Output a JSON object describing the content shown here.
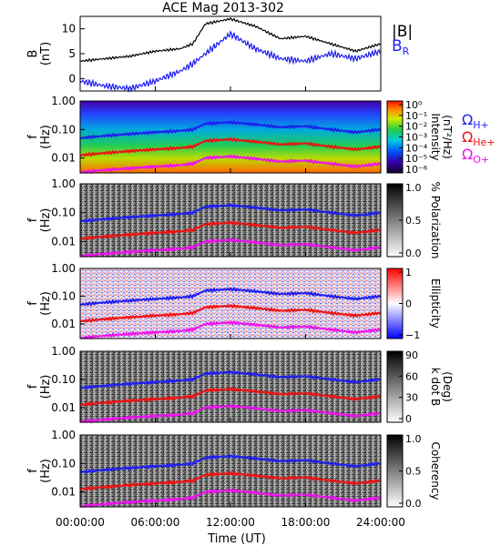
{
  "title": "ACE Mag 2013-302",
  "xaxis": {
    "label": "Time (UT)",
    "ticks": [
      "00:00:00",
      "06:00:00",
      "12:00:00",
      "18:00:00",
      "24:00:00"
    ],
    "range_hours": [
      0,
      24
    ]
  },
  "legend_top": {
    "b_total": "|B|",
    "b_r": "B",
    "b_r_sub": "R"
  },
  "legend_gyro": [
    {
      "sym": "Ω",
      "sub": "H+",
      "color": "#1e1ef0"
    },
    {
      "sym": "Ω",
      "sub": "He+",
      "color": "#ee1111"
    },
    {
      "sym": "Ω",
      "sub": "O+",
      "color": "#ee11ee"
    }
  ],
  "colors": {
    "btotal": "#000000",
    "br": "#1e1ef0",
    "h": "#1e1ef0",
    "he": "#ee1111",
    "o": "#ee11ee"
  },
  "panels": [
    {
      "id": "b",
      "ylabel": "B",
      "yunit": "(nT)",
      "yticks": [
        "0",
        "5",
        "10"
      ]
    },
    {
      "id": "intensity",
      "ylabel": "f",
      "yunit": "(Hz)",
      "yticks": [
        "1.00",
        "0.10",
        "0.01"
      ],
      "cb_label": "Intensity",
      "cb_unit": "(nT²/Hz)",
      "cb_ticks": [
        "10⁰",
        "10⁻¹",
        "10⁻²",
        "10⁻³",
        "10⁻⁴",
        "10⁻⁵",
        "10⁻⁶"
      ],
      "colormap": "rainbow"
    },
    {
      "id": "polarization",
      "ylabel": "f",
      "yunit": "(Hz)",
      "yticks": [
        "1.00",
        "0.10",
        "0.01"
      ],
      "cb_label": "% Polarization",
      "cb_unit": "",
      "cb_ticks": [
        "1.0",
        "0.5",
        "0.0"
      ],
      "colormap": "gray"
    },
    {
      "id": "ellipticity",
      "ylabel": "f",
      "yunit": "(Hz)",
      "yticks": [
        "1.00",
        "0.10",
        "0.01"
      ],
      "cb_label": "Ellipticity",
      "cb_unit": "",
      "cb_ticks": [
        "1",
        "0",
        "−1"
      ],
      "colormap": "bwr"
    },
    {
      "id": "kdotb",
      "ylabel": "f",
      "yunit": "(Hz)",
      "yticks": [
        "1.00",
        "0.10",
        "0.01"
      ],
      "cb_label": "k dot B",
      "cb_unit": "(Deg)",
      "cb_ticks": [
        "90",
        "60",
        "30",
        "0"
      ],
      "colormap": "gray"
    },
    {
      "id": "coherency",
      "ylabel": "f",
      "yunit": "(Hz)",
      "yticks": [
        "1.00",
        "0.10",
        "0.01"
      ],
      "cb_label": "Coherency",
      "cb_unit": "",
      "cb_ticks": [
        "1.0",
        "0.5",
        "0.0"
      ],
      "colormap": "gray"
    }
  ],
  "chart_data": {
    "type": "line",
    "title": "ACE Mag 2013-302",
    "xlabel": "Time (UT)",
    "x_hours": [
      0,
      2,
      4,
      6,
      8,
      9,
      10,
      12,
      14,
      16,
      18,
      20,
      22,
      24
    ],
    "b_panel": {
      "ylabel": "B (nT)",
      "ylim": [
        -2.5,
        12.5
      ],
      "series": [
        {
          "name": "|B|",
          "values": [
            3.5,
            4,
            4.5,
            5.5,
            6,
            7,
            11,
            12,
            10.5,
            8,
            8.5,
            7,
            5.5,
            7
          ]
        },
        {
          "name": "B_R",
          "values": [
            -0.5,
            -1.5,
            -2,
            -0.5,
            1.5,
            3,
            5,
            9,
            6,
            4,
            3.5,
            5,
            4,
            5.5
          ]
        }
      ]
    },
    "gyrofrequency_hz": {
      "ylim": [
        0.003,
        1.0
      ],
      "scale": "log",
      "series": [
        {
          "name": "Ω_H+",
          "values": [
            0.05,
            0.06,
            0.07,
            0.08,
            0.09,
            0.1,
            0.16,
            0.18,
            0.15,
            0.12,
            0.13,
            0.1,
            0.08,
            0.1
          ]
        },
        {
          "name": "Ω_He+",
          "values": [
            0.0125,
            0.015,
            0.0175,
            0.02,
            0.0225,
            0.025,
            0.04,
            0.045,
            0.0375,
            0.03,
            0.0325,
            0.025,
            0.02,
            0.025
          ]
        },
        {
          "name": "Ω_O+",
          "values": [
            0.0031,
            0.0038,
            0.0044,
            0.005,
            0.0056,
            0.0063,
            0.01,
            0.0113,
            0.0094,
            0.0075,
            0.0081,
            0.0063,
            0.005,
            0.0063
          ]
        }
      ]
    }
  }
}
